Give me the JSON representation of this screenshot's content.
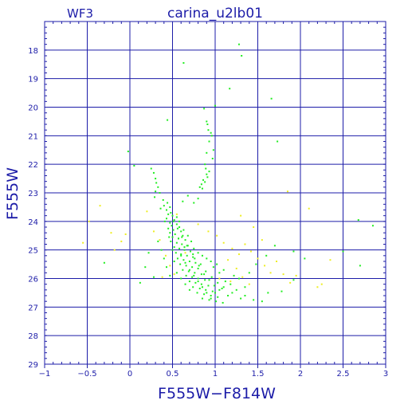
{
  "chart_data": {
    "type": "scatter",
    "title": "carina_u2lb01",
    "panel_label": "WF3",
    "xlabel": "F555W−F814W",
    "ylabel": "F555W",
    "xlim": [
      -1,
      3
    ],
    "ylim": [
      29,
      17
    ],
    "y_axis_inverted": true,
    "grid": true,
    "x_ticks": [
      -1,
      -0.5,
      0,
      0.5,
      1,
      1.5,
      2,
      2.5,
      3
    ],
    "x_tick_labels": [
      "−1",
      "−0.5",
      "0",
      "0.5",
      "1",
      "1.5",
      "2",
      "2.5",
      "3"
    ],
    "y_ticks": [
      18,
      19,
      20,
      21,
      22,
      23,
      24,
      25,
      26,
      27,
      28,
      29
    ],
    "y_tick_labels": [
      "18",
      "19",
      "20",
      "21",
      "22",
      "23",
      "24",
      "25",
      "26",
      "27",
      "28",
      "29"
    ],
    "colors": {
      "frame": "#1c1ca8",
      "grid": "#1c1ca8",
      "text": "#1c1ca8",
      "green_points": "#22ee22",
      "yellow_points": "#eeee22"
    },
    "series": [
      {
        "color": "#22ee22",
        "points": [
          [
            1.28,
            17.8
          ],
          [
            1.31,
            18.2
          ],
          [
            0.63,
            18.45
          ],
          [
            1.17,
            19.35
          ],
          [
            1.66,
            19.7
          ],
          [
            0.87,
            20.05
          ],
          [
            1.0,
            19.95
          ],
          [
            0.44,
            20.45
          ],
          [
            0.9,
            20.5
          ],
          [
            0.91,
            20.6
          ],
          [
            0.92,
            20.8
          ],
          [
            0.95,
            20.9
          ],
          [
            0.96,
            21.0
          ],
          [
            0.93,
            21.2
          ],
          [
            0.98,
            21.5
          ],
          [
            0.9,
            21.6
          ],
          [
            0.97,
            21.8
          ],
          [
            1.73,
            21.2
          ],
          [
            -0.02,
            21.55
          ],
          [
            0.05,
            22.05
          ],
          [
            0.88,
            22.0
          ],
          [
            0.89,
            22.15
          ],
          [
            0.93,
            22.25
          ],
          [
            0.9,
            22.35
          ],
          [
            0.91,
            22.45
          ],
          [
            0.86,
            22.55
          ],
          [
            0.88,
            22.62
          ],
          [
            0.84,
            22.7
          ],
          [
            0.82,
            22.8
          ],
          [
            0.85,
            22.85
          ],
          [
            0.25,
            22.15
          ],
          [
            0.28,
            22.3
          ],
          [
            0.3,
            22.5
          ],
          [
            0.31,
            22.65
          ],
          [
            0.33,
            22.8
          ],
          [
            0.3,
            22.95
          ],
          [
            0.35,
            23.0
          ],
          [
            0.29,
            23.15
          ],
          [
            0.39,
            23.25
          ],
          [
            0.44,
            23.35
          ],
          [
            0.4,
            23.45
          ],
          [
            0.47,
            23.5
          ],
          [
            0.43,
            23.6
          ],
          [
            0.48,
            23.7
          ],
          [
            0.45,
            23.75
          ],
          [
            0.5,
            23.8
          ],
          [
            0.43,
            23.9
          ],
          [
            0.52,
            23.95
          ],
          [
            0.47,
            24.05
          ],
          [
            0.55,
            24.1
          ],
          [
            0.49,
            24.15
          ],
          [
            0.58,
            24.2
          ],
          [
            0.45,
            24.25
          ],
          [
            0.51,
            24.3
          ],
          [
            0.6,
            24.35
          ],
          [
            0.47,
            24.4
          ],
          [
            0.53,
            24.45
          ],
          [
            0.62,
            24.5
          ],
          [
            0.5,
            24.55
          ],
          [
            0.57,
            24.6
          ],
          [
            0.65,
            24.65
          ],
          [
            0.48,
            24.7
          ],
          [
            0.55,
            24.75
          ],
          [
            0.61,
            24.8
          ],
          [
            0.68,
            24.85
          ],
          [
            0.52,
            24.9
          ],
          [
            0.58,
            24.95
          ],
          [
            0.64,
            25.0
          ],
          [
            0.71,
            25.05
          ],
          [
            0.54,
            25.1
          ],
          [
            0.6,
            25.15
          ],
          [
            0.67,
            25.2
          ],
          [
            0.74,
            25.25
          ],
          [
            0.56,
            25.3
          ],
          [
            0.63,
            25.35
          ],
          [
            0.7,
            25.4
          ],
          [
            0.77,
            25.45
          ],
          [
            0.59,
            25.5
          ],
          [
            0.66,
            25.55
          ],
          [
            0.73,
            25.6
          ],
          [
            0.8,
            25.65
          ],
          [
            0.62,
            25.7
          ],
          [
            0.69,
            25.75
          ],
          [
            0.76,
            25.8
          ],
          [
            0.84,
            25.85
          ],
          [
            0.66,
            25.9
          ],
          [
            0.73,
            25.95
          ],
          [
            0.8,
            26.0
          ],
          [
            0.88,
            26.05
          ],
          [
            0.7,
            26.1
          ],
          [
            0.77,
            26.15
          ],
          [
            0.84,
            26.2
          ],
          [
            0.92,
            26.25
          ],
          [
            0.74,
            26.3
          ],
          [
            0.82,
            26.35
          ],
          [
            0.89,
            26.4
          ],
          [
            0.97,
            26.45
          ],
          [
            0.79,
            26.5
          ],
          [
            0.87,
            26.55
          ],
          [
            0.95,
            26.6
          ],
          [
            1.03,
            26.65
          ],
          [
            0.85,
            26.7
          ],
          [
            0.93,
            26.75
          ],
          [
            1.01,
            26.8
          ],
          [
            1.09,
            26.85
          ],
          [
            0.6,
            25.2
          ],
          [
            0.65,
            25.45
          ],
          [
            0.7,
            25.7
          ],
          [
            0.75,
            25.9
          ],
          [
            0.8,
            26.1
          ],
          [
            0.85,
            26.3
          ],
          [
            0.9,
            26.5
          ],
          [
            0.95,
            26.7
          ],
          [
            1.0,
            26.5
          ],
          [
            1.05,
            26.4
          ],
          [
            1.1,
            26.3
          ],
          [
            1.15,
            26.6
          ],
          [
            1.2,
            26.5
          ],
          [
            1.25,
            26.4
          ],
          [
            1.3,
            26.7
          ],
          [
            1.35,
            26.6
          ],
          [
            1.45,
            26.75
          ],
          [
            1.55,
            26.8
          ],
          [
            1.12,
            26.1
          ],
          [
            1.18,
            26.2
          ],
          [
            1.22,
            25.9
          ],
          [
            1.28,
            26.0
          ],
          [
            1.05,
            25.8
          ],
          [
            1.1,
            25.7
          ],
          [
            0.98,
            25.6
          ],
          [
            1.02,
            25.5
          ],
          [
            0.95,
            25.4
          ],
          [
            0.9,
            25.3
          ],
          [
            0.85,
            25.2
          ],
          [
            0.8,
            25.1
          ],
          [
            0.75,
            24.95
          ],
          [
            0.72,
            24.7
          ],
          [
            0.68,
            24.5
          ],
          [
            0.63,
            24.3
          ],
          [
            0.58,
            24.0
          ],
          [
            0.55,
            23.85
          ],
          [
            0.36,
            23.55
          ],
          [
            0.41,
            24.0
          ],
          [
            0.46,
            24.55
          ],
          [
            0.5,
            25.0
          ],
          [
            0.52,
            25.4
          ],
          [
            0.55,
            25.8
          ],
          [
            0.6,
            26.0
          ],
          [
            0.65,
            26.2
          ],
          [
            0.7,
            26.4
          ],
          [
            0.47,
            25.9
          ],
          [
            0.43,
            25.6
          ],
          [
            0.4,
            25.3
          ],
          [
            0.37,
            25.0
          ],
          [
            0.33,
            24.7
          ],
          [
            0.22,
            25.1
          ],
          [
            0.18,
            25.6
          ],
          [
            0.12,
            26.15
          ],
          [
            0.28,
            25.95
          ],
          [
            0.62,
            23.3
          ],
          [
            0.68,
            23.1
          ],
          [
            0.75,
            23.35
          ],
          [
            0.8,
            23.2
          ],
          [
            0.57,
            24.6
          ],
          [
            0.64,
            24.9
          ],
          [
            0.76,
            25.3
          ],
          [
            0.83,
            25.5
          ],
          [
            0.89,
            25.75
          ],
          [
            0.96,
            25.95
          ],
          [
            1.03,
            26.15
          ],
          [
            1.08,
            26.35
          ],
          [
            0.99,
            26.25
          ],
          [
            0.93,
            26.05
          ],
          [
            0.87,
            25.85
          ],
          [
            0.81,
            25.55
          ],
          [
            0.74,
            25.15
          ],
          [
            0.67,
            24.85
          ],
          [
            0.61,
            24.55
          ],
          [
            0.56,
            24.25
          ],
          [
            0.51,
            24.0
          ],
          [
            1.4,
            25.8
          ],
          [
            1.48,
            25.5
          ],
          [
            1.6,
            25.2
          ],
          [
            1.7,
            24.85
          ],
          [
            1.35,
            26.3
          ],
          [
            1.62,
            26.5
          ],
          [
            1.78,
            26.45
          ],
          [
            1.92,
            26.05
          ],
          [
            2.05,
            25.3
          ],
          [
            -0.3,
            25.45
          ],
          [
            2.68,
            23.95
          ],
          [
            2.85,
            24.15
          ],
          [
            2.7,
            25.55
          ],
          [
            2.5,
            25.05
          ],
          [
            1.92,
            25.05
          ]
        ]
      },
      {
        "color": "#eeee22",
        "points": [
          [
            -0.35,
            23.45
          ],
          [
            -0.48,
            24.0
          ],
          [
            -0.22,
            24.4
          ],
          [
            -0.1,
            24.7
          ],
          [
            -0.18,
            25.0
          ],
          [
            -0.05,
            24.45
          ],
          [
            -0.55,
            24.75
          ],
          [
            0.28,
            24.35
          ],
          [
            0.35,
            24.65
          ],
          [
            0.42,
            25.2
          ],
          [
            0.47,
            25.55
          ],
          [
            0.52,
            25.85
          ],
          [
            0.38,
            25.95
          ],
          [
            0.2,
            23.65
          ],
          [
            0.55,
            23.75
          ],
          [
            1.02,
            24.5
          ],
          [
            1.1,
            24.75
          ],
          [
            1.2,
            24.95
          ],
          [
            1.28,
            25.15
          ],
          [
            1.35,
            24.8
          ],
          [
            1.42,
            25.05
          ],
          [
            1.5,
            25.3
          ],
          [
            1.58,
            25.55
          ],
          [
            1.65,
            25.8
          ],
          [
            1.72,
            25.4
          ],
          [
            1.8,
            25.85
          ],
          [
            1.88,
            26.15
          ],
          [
            1.95,
            25.9
          ],
          [
            2.2,
            26.3
          ],
          [
            2.25,
            26.2
          ],
          [
            2.35,
            25.35
          ],
          [
            1.3,
            23.8
          ],
          [
            1.45,
            24.2
          ],
          [
            1.55,
            24.65
          ],
          [
            1.85,
            22.95
          ],
          [
            2.1,
            23.55
          ],
          [
            1.15,
            25.35
          ],
          [
            1.25,
            25.65
          ],
          [
            1.05,
            26.0
          ],
          [
            1.18,
            26.1
          ],
          [
            1.32,
            25.95
          ],
          [
            1.4,
            26.2
          ],
          [
            0.8,
            24.1
          ],
          [
            0.92,
            24.35
          ],
          [
            0.65,
            25.1
          ]
        ]
      }
    ]
  }
}
